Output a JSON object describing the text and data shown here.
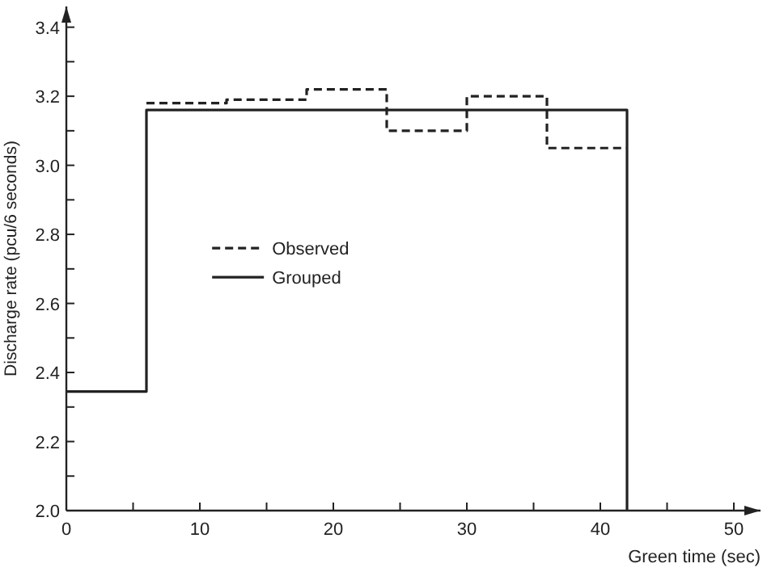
{
  "chart_data": {
    "type": "step",
    "xlabel": "Green time (sec)",
    "ylabel": "Discharge rate (pcu/6 seconds)",
    "series": [
      {
        "name": "Observed",
        "color": "#222222",
        "line_style": "dashed",
        "x": [
          6,
          12,
          18,
          24,
          30,
          36,
          42
        ],
        "values": [
          3.18,
          3.19,
          3.22,
          3.1,
          3.2,
          3.05,
          3.05
        ]
      },
      {
        "name": "Grouped",
        "color": "#222222",
        "line_style": "solid",
        "x": [
          0,
          6,
          42,
          42
        ],
        "values": [
          2.345,
          3.16,
          3.16,
          2.0
        ]
      }
    ],
    "xlim": [
      0,
      52
    ],
    "xticks": [
      0,
      {
        "value": 5,
        "label": null
      },
      10,
      {
        "value": 15,
        "label": null
      },
      20,
      {
        "value": 25,
        "label": null
      },
      30,
      {
        "value": 35,
        "label": null
      },
      40,
      {
        "value": 45,
        "label": null
      },
      50
    ],
    "ylim": [
      2.0,
      3.46
    ],
    "yticks": [
      "2.0",
      {
        "value": 2.1,
        "label": null
      },
      {
        "value": 2.2,
        "label": "2.2"
      },
      {
        "value": 2.3,
        "label": null
      },
      {
        "value": 2.4,
        "label": "2.4"
      },
      {
        "value": 2.5,
        "label": null
      },
      {
        "value": 2.6,
        "label": "2.6"
      },
      {
        "value": 2.7,
        "label": null
      },
      {
        "value": 2.8,
        "label": "2.8"
      },
      {
        "value": 2.9,
        "label": null
      },
      {
        "value": 3.0,
        "label": "3.0"
      },
      {
        "value": 3.1,
        "label": null
      },
      {
        "value": 3.2,
        "label": "3.2"
      },
      {
        "value": 3.3,
        "label": null
      },
      {
        "value": 3.4,
        "label": "3.4"
      }
    ],
    "grid": false,
    "legend": "left"
  }
}
